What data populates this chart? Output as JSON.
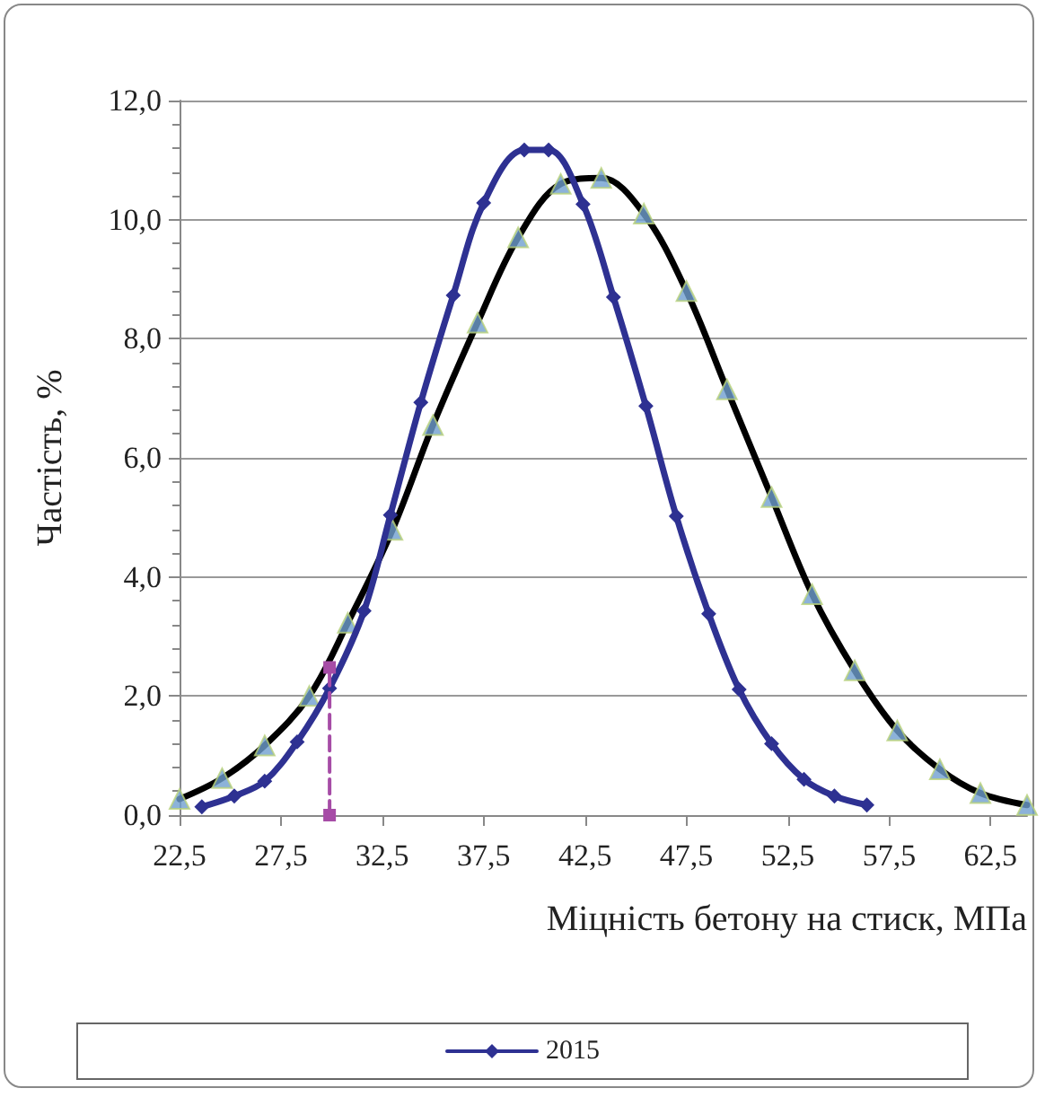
{
  "chart_data": {
    "type": "line",
    "xlabel": "Міцність бетону на стиск, МПа",
    "ylabel": "Частість, %",
    "xlim": [
      22.5,
      64.3
    ],
    "xticks": [
      {
        "value": 22.5,
        "label": "22,5"
      },
      {
        "value": 27.5,
        "label": "27,5"
      },
      {
        "value": 32.5,
        "label": "32,5"
      },
      {
        "value": 37.5,
        "label": "37,5"
      },
      {
        "value": 42.5,
        "label": "42,5"
      },
      {
        "value": 47.5,
        "label": "47,5"
      },
      {
        "value": 52.5,
        "label": "52,5"
      },
      {
        "value": 57.5,
        "label": "57,5"
      },
      {
        "value": 62.5,
        "label": "62,5"
      }
    ],
    "ylim": [
      0,
      12
    ],
    "yticks": [
      {
        "value": 0,
        "label": "0,0"
      },
      {
        "value": 2,
        "label": "2,0"
      },
      {
        "value": 4,
        "label": "4,0"
      },
      {
        "value": 6,
        "label": "6,0"
      },
      {
        "value": 8,
        "label": "8,0"
      },
      {
        "value": 10,
        "label": "10,0"
      },
      {
        "value": 12,
        "label": "12,0"
      }
    ],
    "grid": "y",
    "legend": "bottom",
    "series": [
      {
        "color": "#000000",
        "marker": "none",
        "x": [
          22.5,
          24.6,
          26.7,
          28.9,
          30.8,
          33.0,
          35.0,
          37.2,
          39.2,
          41.3,
          43.3,
          45.4,
          47.5,
          49.5,
          51.7,
          53.7,
          55.8,
          57.9,
          60.0,
          62.0,
          64.3
        ],
        "values": [
          0.27,
          0.62,
          1.17,
          2.0,
          3.23,
          4.79,
          6.55,
          8.27,
          9.7,
          10.6,
          10.7,
          10.1,
          8.8,
          7.15,
          5.34,
          3.71,
          2.43,
          1.42,
          0.77,
          0.37,
          0.17
        ]
      },
      {
        "type": "scatter",
        "color": "#6f9fcf",
        "marker": "triangle",
        "x": [
          22.5,
          24.6,
          26.7,
          28.9,
          30.8,
          33.0,
          35.0,
          37.2,
          39.2,
          41.3,
          43.3,
          45.4,
          47.5,
          49.5,
          51.7,
          53.7,
          55.8,
          57.9,
          60.0,
          62.0,
          64.3
        ],
        "values": [
          0.27,
          0.62,
          1.17,
          2.0,
          3.23,
          4.79,
          6.55,
          8.27,
          9.7,
          10.6,
          10.7,
          10.1,
          8.8,
          7.15,
          5.34,
          3.71,
          2.43,
          1.42,
          0.77,
          0.37,
          0.17
        ]
      },
      {
        "name": "2015",
        "color": "#2e3192",
        "marker": "diamond",
        "x": [
          23.6,
          25.2,
          26.7,
          28.3,
          29.9,
          31.6,
          32.9,
          34.4,
          36.0,
          37.5,
          39.5,
          40.7,
          42.4,
          43.9,
          45.5,
          47.0,
          48.6,
          50.1,
          51.7,
          53.3,
          54.8,
          56.4
        ],
        "values": [
          0.14,
          0.32,
          0.57,
          1.23,
          2.13,
          3.43,
          5.04,
          6.93,
          8.73,
          10.28,
          11.17,
          11.17,
          10.26,
          8.7,
          6.87,
          5.02,
          3.38,
          2.11,
          1.2,
          0.6,
          0.32,
          0.17
        ]
      },
      {
        "type": "line",
        "color": "#a64ca6",
        "marker": "square",
        "line_style": "dashed",
        "x": [
          29.9,
          29.9
        ],
        "values": [
          0,
          2.48
        ]
      }
    ]
  }
}
